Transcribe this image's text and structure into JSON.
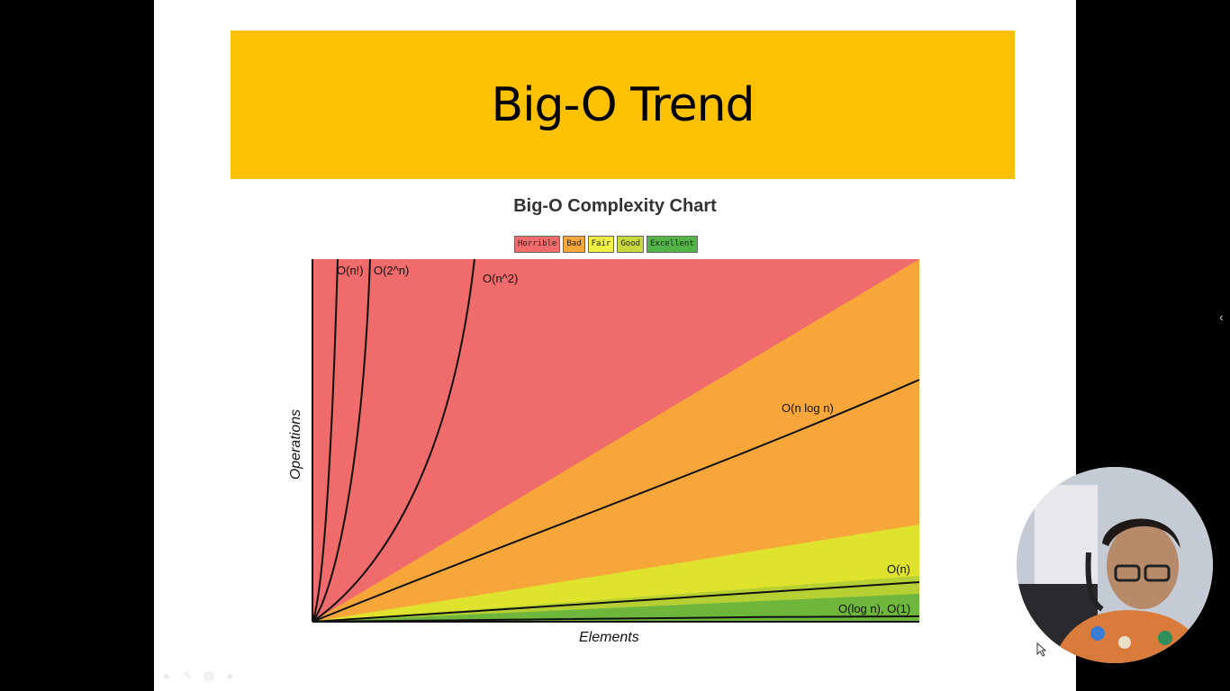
{
  "slide": {
    "title": "Big-O Trend"
  },
  "chart_data": {
    "type": "area",
    "title": "Big-O Complexity Chart",
    "xlabel": "Elements",
    "ylabel": "Operations",
    "legend": [
      "Horrible",
      "Bad",
      "Fair",
      "Good",
      "Excellent"
    ],
    "legend_colors": [
      "#f06b6b",
      "#f7a73a",
      "#f0f044",
      "#c7d93d",
      "#53b548"
    ],
    "region_colors": {
      "horrible": "#f06b6b",
      "bad": "#f7a73a",
      "fair": "#e0e32e",
      "good": "#b6d033",
      "excellent": "#6eb63c"
    },
    "curves": [
      {
        "name": "O(n!)"
      },
      {
        "name": "O(2^n)"
      },
      {
        "name": "O(n^2)"
      },
      {
        "name": "O(n log n)"
      },
      {
        "name": "O(n)"
      },
      {
        "name": "O(log n), O(1)"
      }
    ],
    "grid": false
  },
  "webcam": {
    "present": true
  }
}
